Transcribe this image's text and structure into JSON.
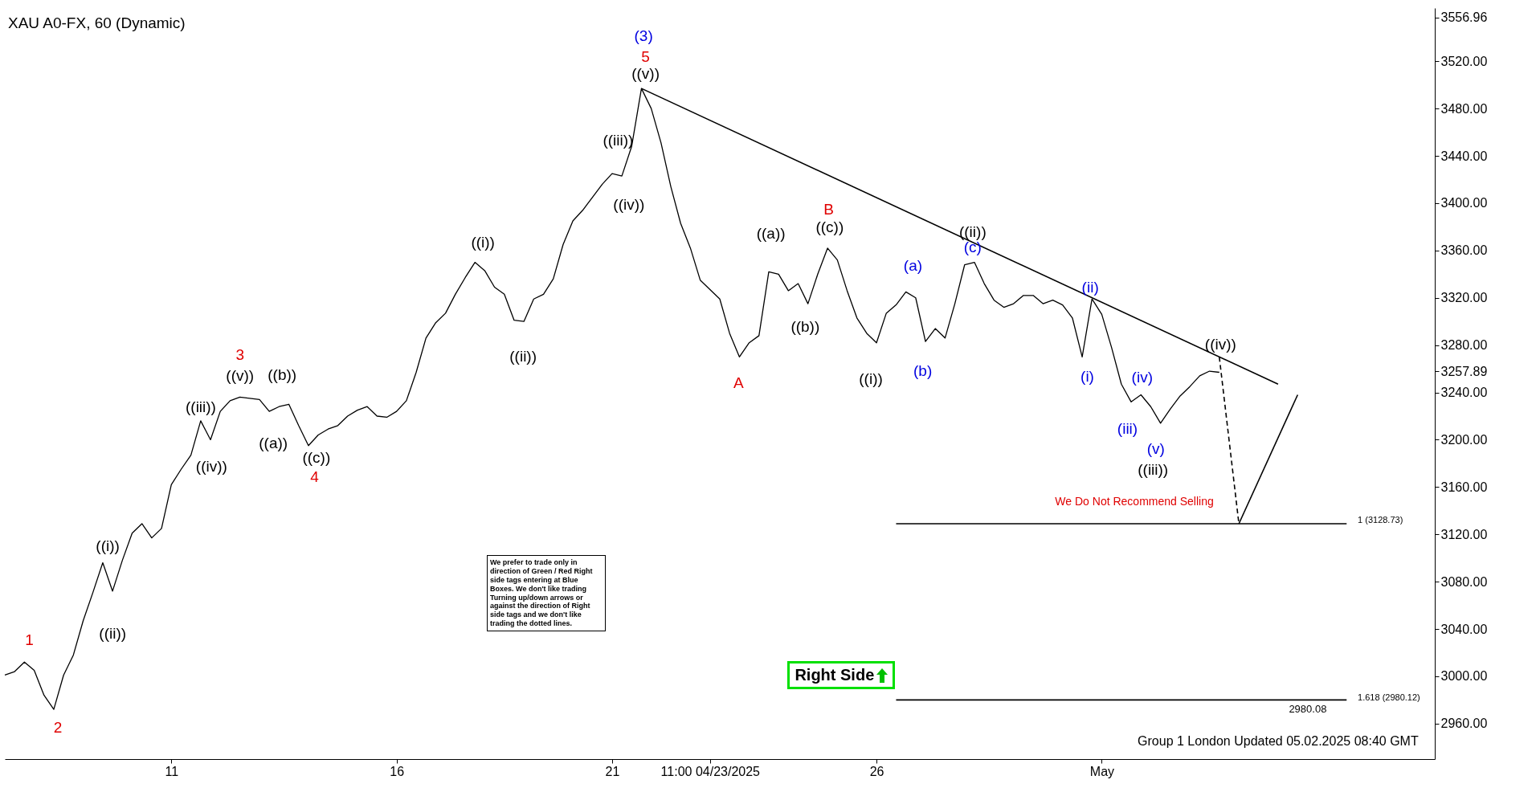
{
  "chart_data": {
    "type": "line",
    "title": "XAU A0-FX, 60 (Dynamic)",
    "grid": false,
    "categories": [
      null,
      null,
      null,
      null,
      null,
      null,
      null,
      null,
      null,
      null,
      null,
      null,
      null,
      null,
      null,
      null,
      null,
      "11",
      null,
      null,
      null,
      null,
      null,
      null,
      null,
      null,
      null,
      null,
      null,
      null,
      null,
      null,
      null,
      null,
      null,
      null,
      null,
      null,
      null,
      null,
      "16",
      null,
      null,
      null,
      null,
      null,
      null,
      null,
      null,
      null,
      null,
      null,
      null,
      null,
      null,
      null,
      null,
      null,
      null,
      null,
      null,
      null,
      "21",
      null,
      null,
      null,
      null,
      null,
      null,
      null,
      null,
      null,
      "11:00 04/23/2025",
      null,
      null,
      null,
      null,
      null,
      null,
      null,
      null,
      null,
      null,
      null,
      null,
      null,
      null,
      null,
      null,
      "26",
      null,
      null,
      null,
      null,
      null,
      null,
      null,
      null,
      null,
      null,
      null,
      null,
      null,
      null,
      null,
      null,
      null,
      null,
      null,
      null,
      null,
      null,
      "May",
      null,
      null,
      null,
      null,
      null,
      null,
      null,
      null,
      null,
      null,
      null,
      null,
      null,
      null,
      null,
      null,
      null,
      null,
      null,
      null,
      null,
      null,
      null,
      null,
      null,
      null,
      null,
      null,
      null,
      null,
      null,
      null,
      null,
      null
    ],
    "ylim": [
      2930,
      3565
    ],
    "yticks": [
      {
        "value": 2960,
        "label": "2960.00"
      },
      {
        "value": 3000,
        "label": "3000.00"
      },
      {
        "value": 3040,
        "label": "3040.00"
      },
      {
        "value": 3080,
        "label": "3080.00"
      },
      {
        "value": 3120,
        "label": "3120.00"
      },
      {
        "value": 3160,
        "label": "3160.00"
      },
      {
        "value": 3200,
        "label": "3200.00"
      },
      {
        "value": 3240,
        "label": "3240.00"
      },
      {
        "value": 3257.89,
        "label": "3257.89"
      },
      {
        "value": 3280,
        "label": "3280.00"
      },
      {
        "value": 3320,
        "label": "3320.00"
      },
      {
        "value": 3360,
        "label": "3360.00"
      },
      {
        "value": 3400,
        "label": "3400.00"
      },
      {
        "value": 3440,
        "label": "3440.00"
      },
      {
        "value": 3480,
        "label": "3480.00"
      },
      {
        "value": 3520,
        "label": "3520.00"
      },
      {
        "value": 3556.96,
        "label": "3556.96"
      }
    ],
    "series": [
      {
        "color": "#000000",
        "values": [
          3001,
          3004,
          3012,
          3005,
          2984,
          2972,
          3001,
          3018,
          3047,
          3071,
          3096,
          3072,
          3098,
          3121,
          3129,
          3117,
          3125,
          3162,
          3175,
          3187,
          3216,
          3200,
          3224,
          3233,
          3236,
          3235,
          3234,
          3224,
          3228,
          3230,
          3212,
          3195,
          3204,
          3209,
          3212,
          3220,
          3225,
          3228,
          3220,
          3219,
          3224,
          3233,
          3257,
          3286,
          3299,
          3307,
          3323,
          3337,
          3350,
          3343,
          3329,
          3323,
          3301,
          3300,
          3319,
          3323,
          3336,
          3365,
          3385,
          3394,
          3405,
          3416,
          3425,
          3423,
          3448,
          3497,
          3480,
          3451,
          3414,
          3383,
          3362,
          3335,
          3327,
          3319,
          3290,
          3270,
          3282,
          3288,
          3342,
          3340,
          3326,
          3332,
          3315,
          3340,
          3362,
          3352,
          3326,
          3303,
          3290,
          3282,
          3307,
          3314,
          3325,
          3320,
          3283,
          3294,
          3286,
          3315,
          3348,
          3350,
          3332,
          3318,
          3312,
          3315,
          3322,
          3322,
          3315,
          3318,
          3314,
          3303,
          3270,
          3319,
          3306,
          3278,
          3247,
          3232,
          3238,
          3228,
          3214,
          3226,
          3237,
          3245,
          3254,
          3258,
          3257,
          null,
          null,
          null,
          null,
          null,
          null,
          null,
          null,
          null,
          null,
          null,
          null,
          null,
          null,
          null,
          null,
          null,
          null,
          null,
          null,
          null,
          null
        ]
      },
      {
        "color": "#000000",
        "values": [
          null,
          null,
          null,
          null,
          null,
          null,
          null,
          null,
          null,
          null,
          null,
          null,
          null,
          null,
          null,
          null,
          null,
          null,
          null,
          null,
          null,
          null,
          null,
          null,
          null,
          null,
          null,
          null,
          null,
          null,
          null,
          null,
          null,
          null,
          null,
          null,
          null,
          null,
          null,
          null,
          null,
          null,
          null,
          null,
          null,
          null,
          null,
          null,
          null,
          null,
          null,
          null,
          null,
          null,
          null,
          null,
          null,
          null,
          null,
          null,
          null,
          null,
          null,
          null,
          null,
          3497,
          null,
          null,
          null,
          null,
          null,
          null,
          null,
          null,
          null,
          null,
          null,
          null,
          null,
          null,
          null,
          null,
          null,
          null,
          null,
          null,
          null,
          null,
          null,
          null,
          null,
          null,
          null,
          null,
          null,
          null,
          null,
          null,
          null,
          null,
          null,
          null,
          null,
          null,
          null,
          null,
          null,
          null,
          null,
          null,
          null,
          null,
          null,
          null,
          null,
          null,
          null,
          null,
          null,
          null,
          null,
          null,
          null,
          null,
          null,
          null,
          null,
          null,
          null,
          null,
          3247,
          null,
          null,
          null,
          null,
          null,
          null,
          null,
          null,
          null,
          null,
          null,
          null,
          null,
          null,
          null,
          null
        ]
      },
      {
        "color": "#000000",
        "line_style": "dashed",
        "values": [
          null,
          null,
          null,
          null,
          null,
          null,
          null,
          null,
          null,
          null,
          null,
          null,
          null,
          null,
          null,
          null,
          null,
          null,
          null,
          null,
          null,
          null,
          null,
          null,
          null,
          null,
          null,
          null,
          null,
          null,
          null,
          null,
          null,
          null,
          null,
          null,
          null,
          null,
          null,
          null,
          null,
          null,
          null,
          null,
          null,
          null,
          null,
          null,
          null,
          null,
          null,
          null,
          null,
          null,
          null,
          null,
          null,
          null,
          null,
          null,
          null,
          null,
          null,
          null,
          null,
          null,
          null,
          null,
          null,
          null,
          null,
          null,
          null,
          null,
          null,
          null,
          null,
          null,
          null,
          null,
          null,
          null,
          null,
          null,
          null,
          null,
          null,
          null,
          null,
          null,
          null,
          null,
          null,
          null,
          null,
          null,
          null,
          null,
          null,
          null,
          null,
          null,
          null,
          null,
          null,
          null,
          null,
          null,
          null,
          null,
          null,
          null,
          null,
          null,
          null,
          null,
          null,
          null,
          null,
          null,
          null,
          null,
          null,
          null,
          3270,
          null,
          3129,
          null,
          null,
          null,
          null,
          null,
          null,
          null,
          null,
          null,
          null,
          null,
          null,
          null,
          null,
          null,
          null,
          null,
          null,
          null,
          null
        ]
      },
      {
        "color": "#000000",
        "values": [
          null,
          null,
          null,
          null,
          null,
          null,
          null,
          null,
          null,
          null,
          null,
          null,
          null,
          null,
          null,
          null,
          null,
          null,
          null,
          null,
          null,
          null,
          null,
          null,
          null,
          null,
          null,
          null,
          null,
          null,
          null,
          null,
          null,
          null,
          null,
          null,
          null,
          null,
          null,
          null,
          null,
          null,
          null,
          null,
          null,
          null,
          null,
          null,
          null,
          null,
          null,
          null,
          null,
          null,
          null,
          null,
          null,
          null,
          null,
          null,
          null,
          null,
          null,
          null,
          null,
          null,
          null,
          null,
          null,
          null,
          null,
          null,
          null,
          null,
          null,
          null,
          null,
          null,
          null,
          null,
          null,
          null,
          null,
          null,
          null,
          null,
          null,
          null,
          null,
          null,
          null,
          null,
          null,
          null,
          null,
          null,
          null,
          null,
          null,
          null,
          null,
          null,
          null,
          null,
          null,
          null,
          null,
          null,
          null,
          null,
          null,
          null,
          null,
          null,
          null,
          null,
          null,
          null,
          null,
          null,
          null,
          null,
          null,
          null,
          null,
          null,
          3129,
          null,
          null,
          null,
          null,
          null,
          3238,
          null,
          null,
          null,
          null,
          null,
          null,
          null,
          null,
          null,
          null,
          null,
          null,
          null,
          null
        ]
      },
      {
        "color": "#000000",
        "values": [
          null,
          null,
          null,
          null,
          null,
          null,
          null,
          null,
          null,
          null,
          null,
          null,
          null,
          null,
          null,
          null,
          null,
          null,
          null,
          null,
          null,
          null,
          null,
          null,
          null,
          null,
          null,
          null,
          null,
          null,
          null,
          null,
          null,
          null,
          null,
          null,
          null,
          null,
          null,
          null,
          null,
          null,
          null,
          null,
          null,
          null,
          null,
          null,
          null,
          null,
          null,
          null,
          null,
          null,
          null,
          null,
          null,
          null,
          null,
          null,
          null,
          null,
          null,
          null,
          null,
          null,
          null,
          null,
          null,
          null,
          null,
          null,
          null,
          null,
          null,
          null,
          null,
          null,
          null,
          null,
          null,
          null,
          null,
          null,
          null,
          null,
          null,
          null,
          null,
          null,
          null,
          3129,
          3129,
          3129,
          3129,
          3129,
          3129,
          3129,
          3129,
          3129,
          3129,
          3129,
          3129,
          3129,
          3129,
          3129,
          3129,
          3129,
          3129,
          3129,
          3129,
          3129,
          3129,
          3129,
          3129,
          3129,
          3129,
          3129,
          3129,
          3129,
          3129,
          3129,
          3129,
          3129,
          3129,
          3129,
          3129,
          3129,
          3129,
          3129,
          3129,
          3129,
          3129,
          3129,
          3129,
          3129,
          3129,
          3129,
          null,
          null,
          null,
          null,
          null,
          null,
          null,
          null,
          null
        ]
      },
      {
        "color": "#000000",
        "values": [
          null,
          null,
          null,
          null,
          null,
          null,
          null,
          null,
          null,
          null,
          null,
          null,
          null,
          null,
          null,
          null,
          null,
          null,
          null,
          null,
          null,
          null,
          null,
          null,
          null,
          null,
          null,
          null,
          null,
          null,
          null,
          null,
          null,
          null,
          null,
          null,
          null,
          null,
          null,
          null,
          null,
          null,
          null,
          null,
          null,
          null,
          null,
          null,
          null,
          null,
          null,
          null,
          null,
          null,
          null,
          null,
          null,
          null,
          null,
          null,
          null,
          null,
          null,
          null,
          null,
          null,
          null,
          null,
          null,
          null,
          null,
          null,
          null,
          null,
          null,
          null,
          null,
          null,
          null,
          null,
          null,
          null,
          null,
          null,
          null,
          null,
          null,
          null,
          null,
          null,
          null,
          2980,
          2980,
          2980,
          2980,
          2980,
          2980,
          2980,
          2980,
          2980,
          2980,
          2980,
          2980,
          2980,
          2980,
          2980,
          2980,
          2980,
          2980,
          2980,
          2980,
          2980,
          2980,
          2980,
          2980,
          2980,
          2980,
          2980,
          2980,
          2980,
          2980,
          2980,
          2980,
          2980,
          2980,
          2980,
          2980,
          2980,
          2980,
          2980,
          2980,
          2980,
          2980,
          2980,
          2980,
          2980,
          2980,
          2980,
          null,
          null,
          null,
          null,
          null,
          null,
          null,
          null,
          null
        ]
      }
    ],
    "annotations": [
      "We prefer to trade only in direction of Green / Red Right side tags entering at Blue Boxes. We don't like trading Turning up/down arrows or against the direction of Right side tags and we don't like trading the dotted lines.",
      "Right Side",
      "Group 1 London Updated 05.02.2025 08:40 GMT",
      "1",
      "2",
      "((i))",
      "((ii))",
      "((iii))",
      "((iv))",
      "((v))",
      "3",
      "((b))",
      "((a))",
      "((c))",
      "4",
      "((i))",
      "((ii))",
      "((iii))",
      "((iv))",
      "((v))",
      "5",
      "(3)",
      "A",
      "((a))",
      "((b))",
      "((c))",
      "B",
      "((i))",
      "(a)",
      "(b)",
      "((ii))",
      "(c)",
      "(ii)",
      "(i)",
      "(iv)",
      "(iii)",
      "(v)",
      "((iii))",
      "((iv))",
      "We Do Not Recommend Selling",
      "2980.08",
      "1 (3128.73)",
      "1.618 (2980.12)"
    ]
  }
}
